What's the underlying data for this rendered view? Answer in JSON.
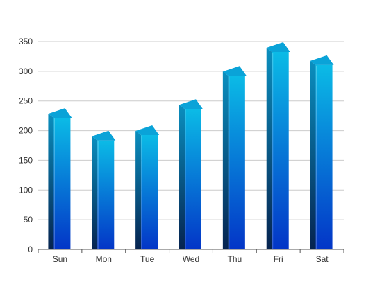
{
  "chart_data": {
    "type": "bar",
    "style": "3d-column-gradient",
    "categories": [
      "Sun",
      "Mon",
      "Tue",
      "Wed",
      "Thu",
      "Fri",
      "Sat"
    ],
    "values": [
      225,
      187,
      196,
      240,
      296,
      336,
      314
    ],
    "title": "",
    "xlabel": "",
    "ylabel": "",
    "ylim": [
      0,
      350
    ],
    "yticks": [
      0,
      50,
      100,
      150,
      200,
      250,
      300,
      350
    ],
    "grid": true,
    "legend": "none"
  },
  "colors": {
    "bar_top": "#0bbbe6",
    "bar_bottom": "#0335c7",
    "side_top": "#0a8fbf",
    "side_bottom": "#06234f",
    "cap": "#0aa3d8",
    "grid": "#cccccc",
    "axis": "#555555"
  }
}
